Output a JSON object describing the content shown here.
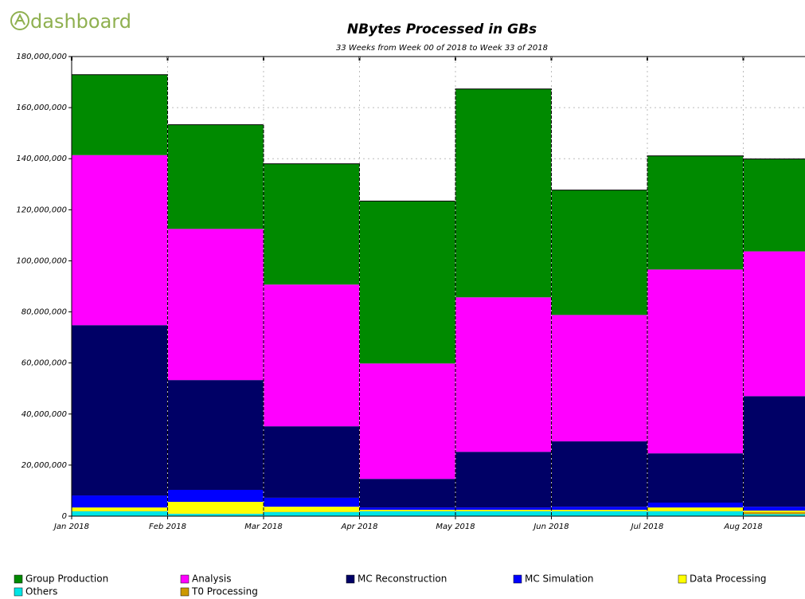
{
  "logo": "dashboard",
  "chart_data": {
    "type": "stacked-bar",
    "title": "NBytes Processed in GBs",
    "subtitle": "33 Weeks from Week 00 of 2018 to Week 33 of 2018",
    "categories": [
      "Jan 2018",
      "Feb 2018",
      "Mar 2018",
      "Apr 2018",
      "May 2018",
      "Jun 2018",
      "Jul 2018",
      "Aug 2018"
    ],
    "series": [
      {
        "name": "Others",
        "color": "#00e5e5",
        "values": [
          1900000,
          900000,
          1600000,
          1900000,
          1900000,
          1900000,
          1900000,
          800000
        ]
      },
      {
        "name": "T0 Processing",
        "color": "#cc9900",
        "values": [
          100000,
          100000,
          100000,
          100000,
          100000,
          100000,
          100000,
          800000
        ]
      },
      {
        "name": "Data Processing",
        "color": "#ffff00",
        "values": [
          1400000,
          4600000,
          2000000,
          500000,
          500000,
          500000,
          1400000,
          600000
        ]
      },
      {
        "name": "MC Simulation",
        "color": "#0000ff",
        "values": [
          4700000,
          4700000,
          3500000,
          900000,
          900000,
          1200000,
          1900000,
          1500000
        ]
      },
      {
        "name": "MC Reconstruction",
        "color": "#000066",
        "values": [
          66700000,
          43000000,
          28000000,
          11200000,
          21800000,
          25600000,
          19300000,
          43300000
        ]
      },
      {
        "name": "Analysis",
        "color": "#ff00ff",
        "values": [
          66600000,
          59200000,
          55500000,
          45200000,
          60500000,
          49500000,
          72000000,
          56700000
        ]
      },
      {
        "name": "Group Production",
        "color": "#008a00",
        "values": [
          31500000,
          40800000,
          47300000,
          63600000,
          81600000,
          48900000,
          44500000,
          36200000
        ]
      }
    ],
    "ylim": [
      0,
      180000000
    ],
    "yticks": [
      0,
      {
        "value": 20000000,
        "label": "20,000,000"
      },
      {
        "value": 40000000,
        "label": "40,000,000"
      },
      {
        "value": 60000000,
        "label": "60,000,000"
      },
      {
        "value": 80000000,
        "label": "80,000,000"
      },
      {
        "value": 100000000,
        "label": "100,000,000"
      },
      {
        "value": 120000000,
        "label": "120,000,000"
      },
      {
        "value": 140000000,
        "label": "140,000,000"
      },
      {
        "value": 160000000,
        "label": "160,000,000"
      },
      {
        "value": 180000000,
        "label": "180,000,000"
      }
    ],
    "legend_order": [
      "Group Production",
      "Analysis",
      "MC Reconstruction",
      "MC Simulation",
      "Data Processing",
      "Others",
      "T0 Processing"
    ],
    "grid": true
  }
}
